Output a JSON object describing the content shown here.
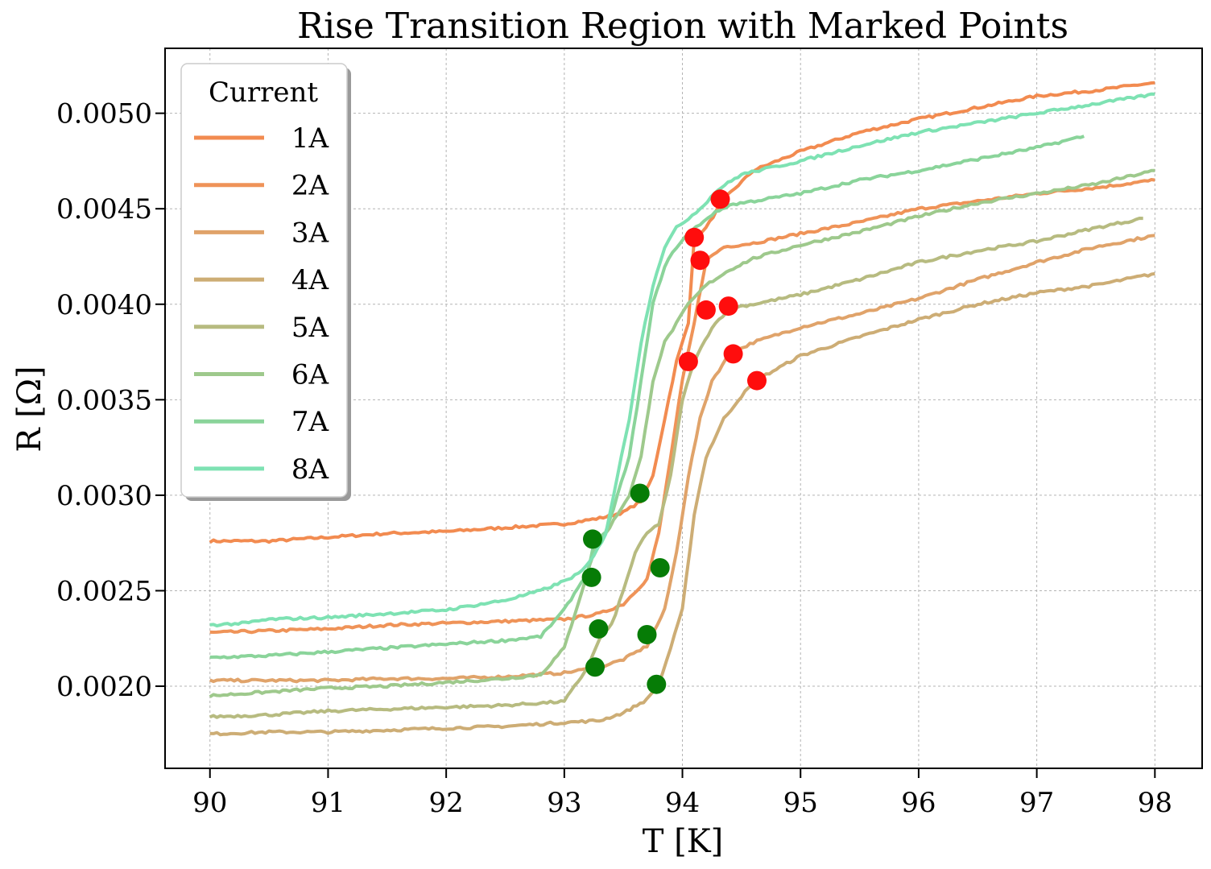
{
  "chart_data": {
    "type": "line",
    "title": "Rise Transition Region with Marked Points",
    "xlabel": "T [K]",
    "ylabel": "R [Ω]",
    "xlim": [
      89.62,
      98.4
    ],
    "ylim": [
      0.00157,
      0.00534
    ],
    "xticks": [
      90,
      91,
      92,
      93,
      94,
      95,
      96,
      97,
      98
    ],
    "yticks": [
      0.002,
      0.0025,
      0.003,
      0.0035,
      0.004,
      0.0045,
      0.005
    ],
    "ytick_labels": [
      "0.0020",
      "0.0025",
      "0.0030",
      "0.0035",
      "0.0040",
      "0.0045",
      "0.0050"
    ],
    "grid": true,
    "legend": {
      "title": "Current",
      "position": "top-left"
    },
    "series": [
      {
        "name": "1A",
        "color": "#f28b50",
        "x": [
          90.0,
          90.5,
          91.0,
          91.5,
          92.0,
          92.5,
          93.0,
          93.3,
          93.5,
          93.65,
          93.75,
          93.85,
          93.95,
          94.05,
          94.1,
          94.2,
          94.35,
          94.6,
          95.0,
          95.5,
          96.0,
          96.5,
          97.0,
          97.5,
          98.0
        ],
        "y": [
          0.00276,
          0.00276,
          0.00278,
          0.0028,
          0.00281,
          0.00283,
          0.00285,
          0.00288,
          0.00291,
          0.00297,
          0.0031,
          0.0034,
          0.0037,
          0.0039,
          0.00435,
          0.0044,
          0.00455,
          0.0047,
          0.0048,
          0.0049,
          0.00497,
          0.00503,
          0.00509,
          0.00512,
          0.00516
        ]
      },
      {
        "name": "2A",
        "color": "#ef9358",
        "x": [
          90.0,
          90.5,
          91.0,
          91.5,
          92.0,
          92.5,
          93.0,
          93.3,
          93.5,
          93.7,
          93.8,
          93.9,
          94.0,
          94.1,
          94.2,
          94.35,
          94.6,
          95.0,
          95.5,
          96.0,
          96.5,
          97.0,
          97.5,
          98.0
        ],
        "y": [
          0.00228,
          0.00229,
          0.0023,
          0.00232,
          0.00233,
          0.00234,
          0.00235,
          0.00238,
          0.00243,
          0.00256,
          0.0028,
          0.0032,
          0.0036,
          0.0039,
          0.00423,
          0.0043,
          0.00432,
          0.00437,
          0.00443,
          0.0045,
          0.00454,
          0.00458,
          0.00461,
          0.00465
        ]
      },
      {
        "name": "3A",
        "color": "#e0a36a",
        "x": [
          90.0,
          90.5,
          91.0,
          91.5,
          92.0,
          92.5,
          93.0,
          93.3,
          93.5,
          93.7,
          93.85,
          93.95,
          94.05,
          94.15,
          94.25,
          94.4,
          94.6,
          95.0,
          95.5,
          96.0,
          96.5,
          97.0,
          97.5,
          98.0
        ],
        "y": [
          0.00203,
          0.00203,
          0.00203,
          0.00204,
          0.00204,
          0.00205,
          0.00207,
          0.0021,
          0.00214,
          0.00221,
          0.0024,
          0.0027,
          0.0031,
          0.0034,
          0.0036,
          0.00374,
          0.0038,
          0.00388,
          0.00395,
          0.00403,
          0.00413,
          0.00422,
          0.0043,
          0.00436
        ]
      },
      {
        "name": "4A",
        "color": "#cdad75",
        "x": [
          90.0,
          90.5,
          91.0,
          91.5,
          92.0,
          92.5,
          93.0,
          93.3,
          93.5,
          93.7,
          93.8,
          93.9,
          94.0,
          94.1,
          94.2,
          94.35,
          94.5,
          94.62,
          95.0,
          95.5,
          96.0,
          96.5,
          97.0,
          97.5,
          98.0
        ],
        "y": [
          0.00175,
          0.00176,
          0.00176,
          0.00177,
          0.00178,
          0.00179,
          0.00181,
          0.00182,
          0.00186,
          0.00193,
          0.00201,
          0.0022,
          0.0024,
          0.0029,
          0.0032,
          0.0034,
          0.00352,
          0.0036,
          0.00373,
          0.00383,
          0.00392,
          0.004,
          0.00406,
          0.0041,
          0.00416
        ]
      },
      {
        "name": "5A",
        "color": "#b7bb80",
        "x": [
          90.0,
          90.5,
          91.0,
          91.5,
          92.0,
          92.5,
          93.0,
          93.2,
          93.3,
          93.4,
          93.5,
          93.6,
          93.7,
          93.8,
          93.9,
          94.0,
          94.1,
          94.25,
          94.4,
          94.6,
          95.0,
          95.5,
          96.0,
          96.5,
          97.0,
          97.5,
          97.9
        ],
        "y": [
          0.00184,
          0.00185,
          0.00187,
          0.00188,
          0.00189,
          0.0019,
          0.00192,
          0.0021,
          0.00225,
          0.00232,
          0.0025,
          0.0027,
          0.0028,
          0.00285,
          0.0031,
          0.0035,
          0.0037,
          0.00388,
          0.00398,
          0.004,
          0.00405,
          0.00413,
          0.00422,
          0.00428,
          0.00433,
          0.0044,
          0.00445
        ]
      },
      {
        "name": "6A",
        "color": "#9ec98c",
        "x": [
          90.0,
          90.5,
          91.0,
          91.5,
          92.0,
          92.5,
          92.8,
          93.0,
          93.15,
          93.25,
          93.35,
          93.45,
          93.55,
          93.65,
          93.75,
          93.85,
          93.95,
          94.05,
          94.2,
          94.4,
          94.6,
          95.0,
          95.5,
          96.0,
          96.5,
          97.0,
          97.5,
          98.0
        ],
        "y": [
          0.00195,
          0.00197,
          0.00199,
          0.002,
          0.00202,
          0.00204,
          0.00206,
          0.0022,
          0.0025,
          0.0027,
          0.0028,
          0.0029,
          0.003,
          0.0032,
          0.0036,
          0.0038,
          0.0039,
          0.004,
          0.0041,
          0.00418,
          0.00424,
          0.00431,
          0.00438,
          0.00446,
          0.00453,
          0.00458,
          0.00463,
          0.0047
        ]
      },
      {
        "name": "7A",
        "color": "#8ad49a",
        "x": [
          90.0,
          90.5,
          91.0,
          91.5,
          92.0,
          92.5,
          92.8,
          93.0,
          93.2,
          93.25,
          93.35,
          93.45,
          93.55,
          93.65,
          93.75,
          93.85,
          93.95,
          94.05,
          94.15,
          94.25,
          94.4,
          95.0,
          95.5,
          96.0,
          96.5,
          97.0,
          97.4
        ],
        "y": [
          0.00215,
          0.00216,
          0.00218,
          0.0022,
          0.00222,
          0.00224,
          0.00226,
          0.0024,
          0.0026,
          0.00275,
          0.0028,
          0.003,
          0.0032,
          0.0036,
          0.004,
          0.0042,
          0.0043,
          0.00437,
          0.00442,
          0.00447,
          0.00452,
          0.00458,
          0.00465,
          0.0047,
          0.00476,
          0.00482,
          0.00488
        ]
      },
      {
        "name": "8A",
        "color": "#7ee2b3",
        "x": [
          90.0,
          90.3,
          90.5,
          91.0,
          91.5,
          92.0,
          92.5,
          92.8,
          93.0,
          93.15,
          93.25,
          93.35,
          93.45,
          93.55,
          93.65,
          93.75,
          93.85,
          93.95,
          94.05,
          94.15,
          94.3,
          94.5,
          95.0,
          95.5,
          96.0,
          96.5,
          97.0,
          97.5,
          98.0
        ],
        "y": [
          0.00232,
          0.00233,
          0.00235,
          0.00236,
          0.00238,
          0.0024,
          0.00245,
          0.0025,
          0.00255,
          0.0026,
          0.00268,
          0.0028,
          0.0031,
          0.0034,
          0.0038,
          0.0041,
          0.0043,
          0.0044,
          0.00445,
          0.0045,
          0.0046,
          0.00468,
          0.00475,
          0.00483,
          0.0049,
          0.00495,
          0.005,
          0.00505,
          0.0051
        ]
      }
    ],
    "marked_points": {
      "red": {
        "color": "#ff0d0d",
        "points": [
          [
            94.32,
            0.00455
          ],
          [
            94.1,
            0.00435
          ],
          [
            94.15,
            0.00423
          ],
          [
            94.2,
            0.00397
          ],
          [
            94.39,
            0.00399
          ],
          [
            94.05,
            0.0037
          ],
          [
            94.43,
            0.00374
          ],
          [
            94.63,
            0.0036
          ]
        ]
      },
      "green": {
        "color": "#067c06",
        "points": [
          [
            93.64,
            0.00301
          ],
          [
            93.24,
            0.00277
          ],
          [
            93.23,
            0.00257
          ],
          [
            93.81,
            0.00262
          ],
          [
            93.29,
            0.0023
          ],
          [
            93.7,
            0.00227
          ],
          [
            93.26,
            0.0021
          ],
          [
            93.78,
            0.00201
          ]
        ]
      }
    }
  }
}
